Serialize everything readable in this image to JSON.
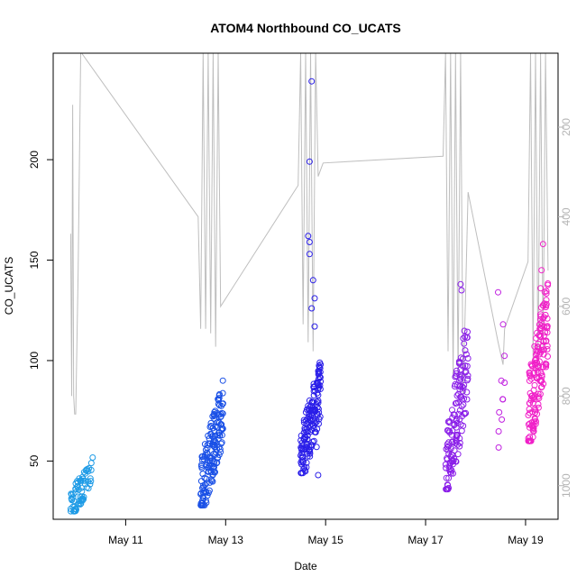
{
  "chart_data": {
    "type": "scatter",
    "title": "ATOM4 Northbound CO_UCATS",
    "xlabel": "Date",
    "ylabel": "CO_UCATS",
    "x_unit": "days in May",
    "xlim": [
      9.55,
      19.65
    ],
    "ylim": [
      21,
      253
    ],
    "y2lim": [
      1075,
      35
    ],
    "y2_reversed": true,
    "x_ticks": [
      {
        "value": 11,
        "label": "May 11"
      },
      {
        "value": 13,
        "label": "May 13"
      },
      {
        "value": 15,
        "label": "May 15"
      },
      {
        "value": 17,
        "label": "May 17"
      },
      {
        "value": 19,
        "label": "May 19"
      }
    ],
    "y_ticks": [
      {
        "value": 50,
        "label": "50"
      },
      {
        "value": 100,
        "label": "100"
      },
      {
        "value": 150,
        "label": "150"
      },
      {
        "value": 200,
        "label": "200"
      }
    ],
    "y2_ticks": [
      {
        "value": 200,
        "label": "200"
      },
      {
        "value": 400,
        "label": "400"
      },
      {
        "value": 600,
        "label": "600"
      },
      {
        "value": 800,
        "label": "800"
      },
      {
        "value": 1000,
        "label": "1000"
      }
    ],
    "grid": false,
    "legend": "none",
    "colors": {
      "day10": "#1e9be6",
      "day12": "#1a50e6",
      "day14": "#2a1ee8",
      "day17": "#8a1ee8",
      "day18": "#c020e0",
      "day19": "#f020c8",
      "profile_line": "#bebebe"
    },
    "clusters": [
      {
        "x_range": [
          9.9,
          10.35
        ],
        "y_range": [
          25,
          57
        ],
        "n": 70,
        "color": "#1e9be6"
      },
      {
        "x_range": [
          12.5,
          12.95
        ],
        "y_range": [
          28,
          101
        ],
        "n": 170,
        "color": "#1a50e6"
      },
      {
        "x_range": [
          14.5,
          14.9
        ],
        "y_range": [
          44,
          110
        ],
        "n": 160,
        "color": "#2a1ee8"
      },
      {
        "x_range": [
          17.4,
          17.85
        ],
        "y_range": [
          36,
          138
        ],
        "n": 140,
        "color": "#8a1ee8"
      },
      {
        "x_range": [
          18.45,
          18.6
        ],
        "y_range": [
          44,
          134
        ],
        "n": 8,
        "color": "#c020e0"
      },
      {
        "x_range": [
          19.05,
          19.45
        ],
        "y_range": [
          60,
          158
        ],
        "n": 160,
        "color": "#f020c8"
      }
    ],
    "outliers": [
      {
        "x": 14.72,
        "y": 239
      },
      {
        "x": 14.68,
        "y": 199
      },
      {
        "x": 14.65,
        "y": 162
      },
      {
        "x": 14.68,
        "y": 159
      },
      {
        "x": 14.68,
        "y": 153
      },
      {
        "x": 14.75,
        "y": 140
      },
      {
        "x": 14.72,
        "y": 126
      },
      {
        "x": 14.78,
        "y": 131
      },
      {
        "x": 14.78,
        "y": 117
      },
      {
        "x": 14.82,
        "y": 57
      },
      {
        "x": 14.85,
        "y": 43
      },
      {
        "x": 14.52,
        "y": 54
      },
      {
        "x": 18.45,
        "y": 134
      },
      {
        "x": 18.55,
        "y": 118
      },
      {
        "x": 18.58,
        "y": 89
      },
      {
        "x": 19.35,
        "y": 158
      },
      {
        "x": 19.32,
        "y": 145
      },
      {
        "x": 19.3,
        "y": 136
      },
      {
        "x": 17.7,
        "y": 138
      },
      {
        "x": 17.72,
        "y": 135
      }
    ],
    "pressure_profile": [
      [
        9.9,
        438
      ],
      [
        9.92,
        800
      ],
      [
        9.94,
        150
      ],
      [
        9.96,
        800
      ],
      [
        9.98,
        840
      ],
      [
        10.0,
        840
      ],
      [
        10.05,
        520
      ],
      [
        10.1,
        35
      ],
      [
        10.12,
        35
      ],
      [
        12.45,
        400
      ],
      [
        12.5,
        650
      ],
      [
        12.55,
        35
      ],
      [
        12.6,
        650
      ],
      [
        12.65,
        35
      ],
      [
        12.7,
        660
      ],
      [
        12.75,
        35
      ],
      [
        12.8,
        690
      ],
      [
        12.85,
        35
      ],
      [
        12.9,
        600
      ],
      [
        14.45,
        330
      ],
      [
        14.5,
        35
      ],
      [
        14.55,
        640
      ],
      [
        14.6,
        35
      ],
      [
        14.65,
        680
      ],
      [
        14.7,
        35
      ],
      [
        14.75,
        700
      ],
      [
        14.8,
        35
      ],
      [
        14.85,
        310
      ],
      [
        14.95,
        280
      ],
      [
        17.35,
        265
      ],
      [
        17.4,
        35
      ],
      [
        17.45,
        700
      ],
      [
        17.5,
        35
      ],
      [
        17.55,
        760
      ],
      [
        17.6,
        35
      ],
      [
        17.65,
        760
      ],
      [
        17.7,
        35
      ],
      [
        17.75,
        800
      ],
      [
        17.85,
        345
      ],
      [
        18.45,
        680
      ],
      [
        18.55,
        730
      ],
      [
        18.58,
        650
      ],
      [
        19.05,
        500
      ],
      [
        19.1,
        35
      ],
      [
        19.15,
        720
      ],
      [
        19.2,
        35
      ],
      [
        19.25,
        740
      ],
      [
        19.3,
        35
      ],
      [
        19.35,
        700
      ],
      [
        19.4,
        35
      ],
      [
        19.45,
        520
      ]
    ]
  }
}
